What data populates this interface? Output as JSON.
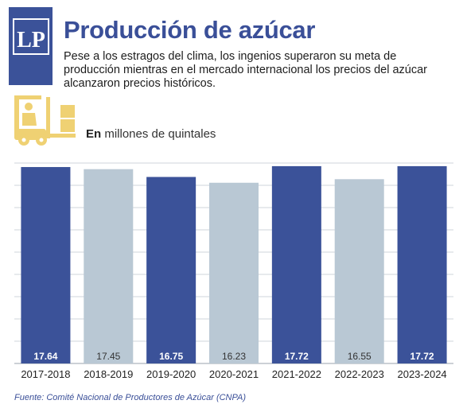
{
  "logo": {
    "text": "LP"
  },
  "title": "Producción de azúcar",
  "subtitle": "Pese a los estragos del clima, los ingenios superaron su meta de producción mientras en el mercado internacional los precios del azúcar alcanzaron precios históricos.",
  "unit_bold": "En",
  "unit_rest": " millones de quintales",
  "source": "Fuente: Comité Nacional de Productores de Azúcar (CNPA)",
  "icons": {
    "header": "forklift-icon"
  },
  "colors": {
    "primary": "#3b5299",
    "secondary": "#b9c8d4",
    "accent": "#efd173"
  },
  "chart_data": {
    "type": "bar",
    "categories": [
      "2017-2018",
      "2018-2019",
      "2019-2020",
      "2020-2021",
      "2021-2022",
      "2022-2023",
      "2023-2024"
    ],
    "values": [
      17.64,
      17.45,
      16.75,
      16.23,
      17.72,
      16.55,
      17.72
    ],
    "labels": [
      "17.64",
      "17.45",
      "16.75",
      "16.23",
      "17.72",
      "16.55",
      "17.72"
    ],
    "bar_colors": [
      "#3b5299",
      "#b9c8d4",
      "#3b5299",
      "#b9c8d4",
      "#3b5299",
      "#b9c8d4",
      "#3b5299"
    ],
    "label_colors": [
      "#ffffff",
      "#333333",
      "#ffffff",
      "#333333",
      "#ffffff",
      "#333333",
      "#ffffff"
    ],
    "ylim": [
      0,
      18
    ],
    "grid": true,
    "title": "",
    "xlabel": "",
    "ylabel": ""
  }
}
